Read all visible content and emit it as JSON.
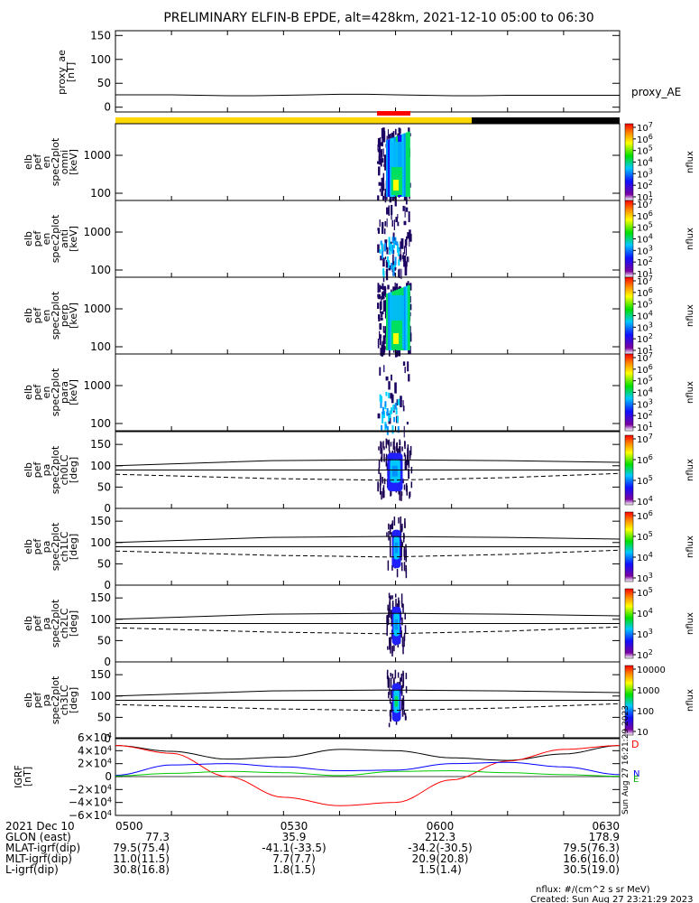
{
  "title": "PRELIMINARY ELFIN-B EPDE, alt=428km, 2021-12-10 05:00 to 06:30",
  "chart_data": [
    {
      "type": "line",
      "id": "proxy_ae",
      "ylabel_lines": [
        "proxy_ae",
        "[nT]"
      ],
      "yticks": [
        "150",
        "100",
        "50",
        "0"
      ],
      "ylim": [
        -10,
        160
      ],
      "side_label": "proxy_AE",
      "x_minutes": [
        0,
        5,
        10,
        15,
        20,
        25,
        30,
        35,
        40,
        45,
        50,
        55,
        60,
        65,
        70,
        75,
        80,
        85,
        90
      ],
      "values": [
        26,
        26,
        26,
        25,
        24,
        24,
        25,
        26,
        27,
        27,
        26,
        25,
        24,
        24,
        25,
        25,
        25,
        25,
        25
      ]
    },
    {
      "type": "heatmap",
      "id": "energy_spectra",
      "panels": [
        {
          "ylabel_lines": [
            "elb",
            "pef",
            "en",
            "spec2plot",
            "omni",
            "[keV]"
          ],
          "colorbar_label": "nflux",
          "cbar_ticks": [
            "10^7",
            "10^6",
            "10^5",
            "10^4",
            "10^3",
            "10^2",
            "10^1"
          ]
        },
        {
          "ylabel_lines": [
            "elb",
            "pef",
            "en",
            "spec2plot",
            "anti",
            "[keV]"
          ],
          "colorbar_label": "nflux",
          "cbar_ticks": [
            "10^7",
            "10^6",
            "10^5",
            "10^4",
            "10^3",
            "10^2",
            "10^1"
          ]
        },
        {
          "ylabel_lines": [
            "elb",
            "pef",
            "en",
            "spec2plot",
            "perp",
            "[keV]"
          ],
          "colorbar_label": "nflux",
          "cbar_ticks": [
            "10^7",
            "10^6",
            "10^5",
            "10^4",
            "10^3",
            "10^2",
            "10^1"
          ]
        },
        {
          "ylabel_lines": [
            "elb",
            "pef",
            "en",
            "spec2plot",
            "para",
            "[keV]"
          ],
          "colorbar_label": "nflux",
          "cbar_ticks": [
            "10^7",
            "10^6",
            "10^5",
            "10^4",
            "10^3",
            "10^2",
            "10^1"
          ]
        }
      ],
      "yticks": [
        "1000",
        "100"
      ],
      "scale": "log"
    },
    {
      "type": "heatmap",
      "id": "pitch_angle_spectra",
      "panels": [
        {
          "ylabel_lines": [
            "elb",
            "pef",
            "pa",
            "spec2plot",
            "ch0LC",
            "[deg]"
          ],
          "colorbar_label": "nflux",
          "cbar_ticks": [
            "10^7",
            "10^6",
            "10^5",
            "10^4"
          ]
        },
        {
          "ylabel_lines": [
            "elb",
            "pef",
            "pa",
            "spec2plot",
            "ch1LC",
            "[deg]"
          ],
          "colorbar_label": "nflux",
          "cbar_ticks": [
            "10^6",
            "10^5",
            "10^4",
            "10^3"
          ]
        },
        {
          "ylabel_lines": [
            "elb",
            "pef",
            "pa",
            "spec2plot",
            "ch2LC",
            "[deg]"
          ],
          "colorbar_label": "nflux",
          "cbar_ticks": [
            "10^5",
            "10^4",
            "10^3",
            "10^2"
          ]
        },
        {
          "ylabel_lines": [
            "elb",
            "pef",
            "pa",
            "spec2plot",
            "ch3LC",
            "[deg]"
          ],
          "colorbar_label": "nflux",
          "cbar_ticks": [
            "10000",
            "1000",
            "100",
            "10"
          ]
        }
      ],
      "yticks": [
        "150",
        "100",
        "50",
        "0"
      ],
      "ylim": [
        0,
        180
      ]
    },
    {
      "type": "line",
      "id": "igrf",
      "ylabel_lines": [
        "IGRF",
        "[nT]"
      ],
      "yticks": [
        "6×10^4",
        "4×10^4",
        "2×10^4",
        "0",
        "−2×10^4",
        "−4×10^4",
        "−6×10^4"
      ],
      "ylim": [
        -60000,
        60000
      ],
      "legend": [
        "D",
        "N",
        "E"
      ],
      "created_label": "Sun Aug 27 16:21:29 2023",
      "x_minutes": [
        0,
        10,
        20,
        30,
        40,
        50,
        60,
        70,
        80,
        90
      ],
      "series": [
        {
          "color": "#000000",
          "values": [
            48000,
            39000,
            27000,
            30000,
            42000,
            40000,
            29000,
            25000,
            35000,
            48000
          ]
        },
        {
          "color": "#ff0000",
          "values": [
            48000,
            36000,
            0,
            -32000,
            -45000,
            -40000,
            -5000,
            24000,
            42000,
            48000
          ]
        },
        {
          "color": "#0000ff",
          "values": [
            2000,
            18000,
            20000,
            15000,
            9000,
            10000,
            20000,
            22000,
            15000,
            3000
          ]
        },
        {
          "color": "#00cc00",
          "values": [
            1000,
            5000,
            8000,
            6000,
            1500,
            8000,
            9000,
            6000,
            3000,
            500
          ]
        }
      ]
    }
  ],
  "x_ticks": [
    "0500",
    "0530",
    "0600",
    "0630"
  ],
  "footer": {
    "rows": [
      {
        "label": "2021 Dec 10",
        "values": [
          "0500",
          "0530",
          "0600",
          "0630"
        ]
      },
      {
        "label": "GLON (east)",
        "values": [
          "77.3",
          "35.9",
          "212.3",
          "178.9"
        ]
      },
      {
        "label": "MLAT-igrf(dip)",
        "values": [
          "79.5(75.4)",
          "-41.1(-33.5)",
          "-34.2(-30.5)",
          "79.5(76.3)"
        ]
      },
      {
        "label": "MLT-igrf(dip)",
        "values": [
          "11.0(11.5)",
          "7.7(7.7)",
          "20.9(20.8)",
          "16.6(16.0)"
        ]
      },
      {
        "label": "L-igrf(dip)",
        "values": [
          "30.8(16.8)",
          "1.8(1.5)",
          "1.5(1.4)",
          "30.5(19.0)"
        ]
      }
    ],
    "units_note": "nflux: #/(cm^2 s sr MeV)",
    "created": "Created: Sun Aug 27 23:21:29 2023"
  },
  "colors": {
    "yellow_bar": "#ffd700",
    "black_bar": "#000000",
    "red_bar": "#ff0000"
  }
}
